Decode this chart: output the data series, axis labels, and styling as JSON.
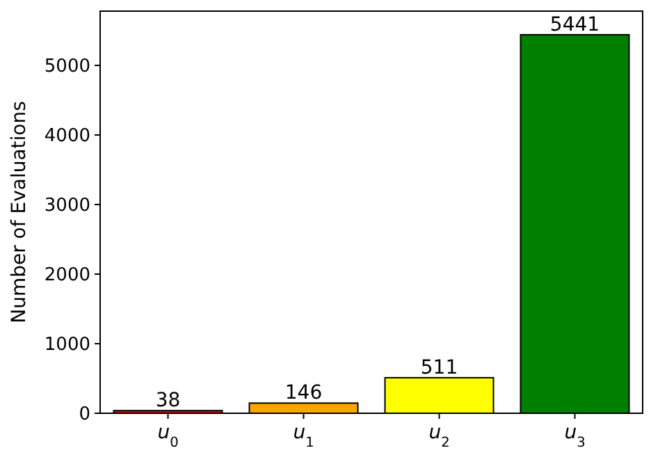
{
  "chart_data": {
    "type": "bar",
    "ylabel": "Number of Evaluations",
    "categories": [
      "u$_{0}$",
      "u$_{1}$",
      "u$_{2}$",
      "u$_{3}$"
    ],
    "values": [
      38,
      146,
      511,
      5441
    ],
    "colors": [
      "#ff0000",
      "#ffa500",
      "#ffff00",
      "#008000"
    ],
    "ylim": [
      0,
      5780
    ],
    "yticks": [
      0,
      1000,
      2000,
      3000,
      4000,
      5000
    ],
    "data_labels": true,
    "grid": false
  }
}
